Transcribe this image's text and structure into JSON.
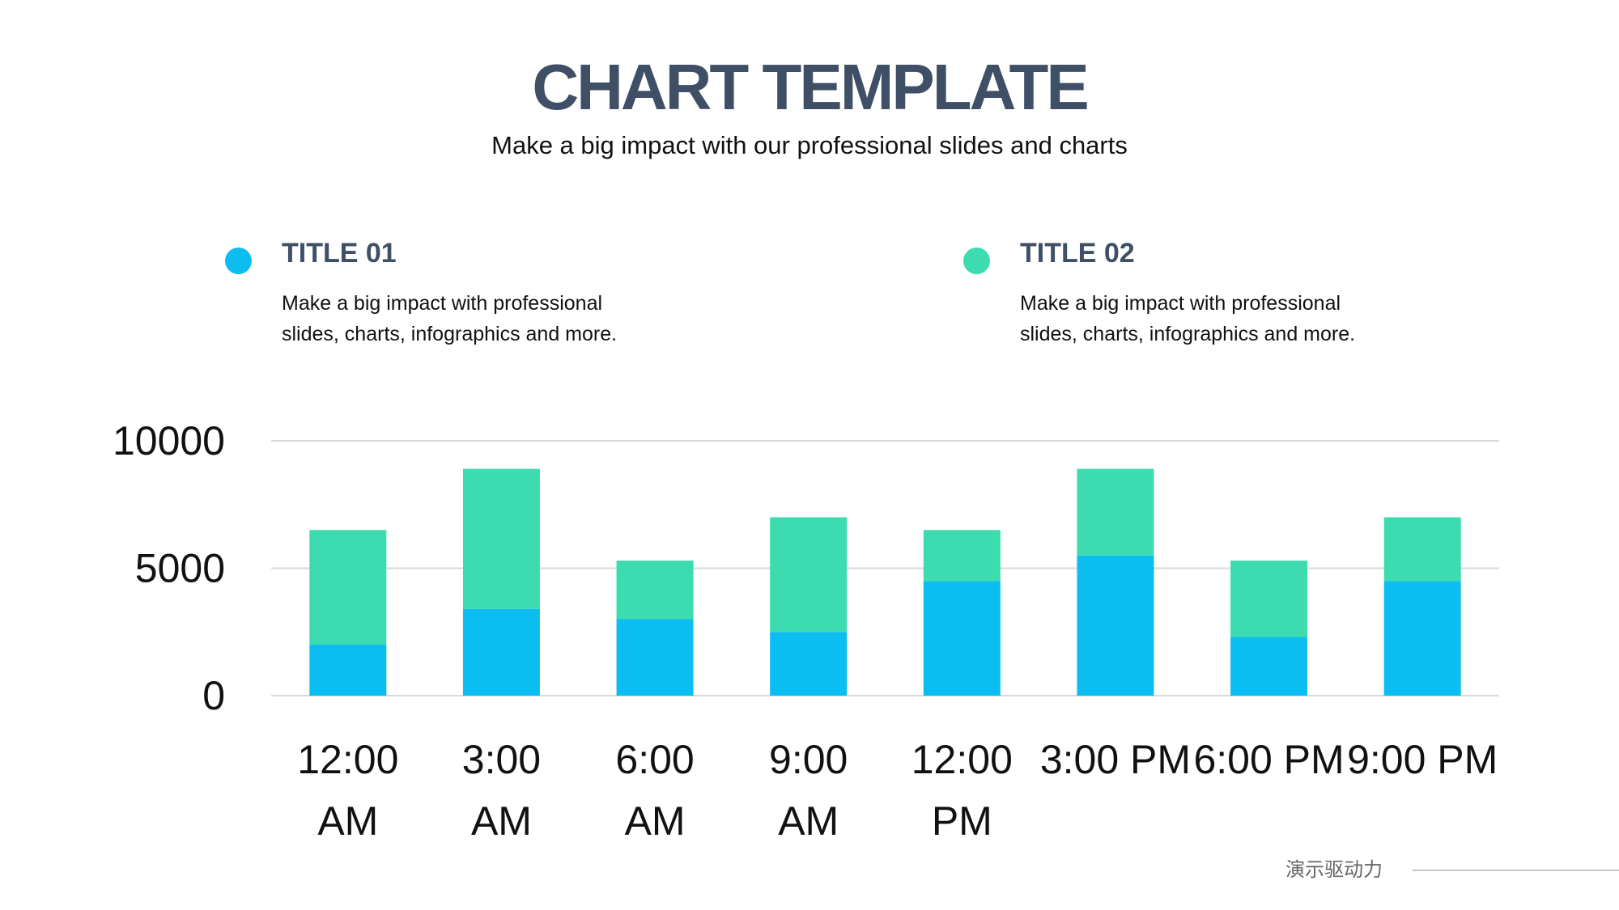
{
  "header": {
    "title": "CHART TEMPLATE",
    "subtitle": "Make a big impact with our professional slides and charts"
  },
  "legend": [
    {
      "title": "TITLE 01",
      "description": "Make a big impact with professional slides, charts, infographics and more.",
      "color": "#0bbdf0"
    },
    {
      "title": "TITLE 02",
      "description": "Make a big impact with professional slides, charts, infographics and more.",
      "color": "#3ddbb0"
    }
  ],
  "chart_data": {
    "type": "bar",
    "stacked": true,
    "categories": [
      [
        "12:00",
        "AM"
      ],
      [
        "3:00",
        "AM"
      ],
      [
        "6:00",
        "AM"
      ],
      [
        "9:00",
        "AM"
      ],
      [
        "12:00",
        "PM"
      ],
      [
        "3:00 PM"
      ],
      [
        "6:00 PM"
      ],
      [
        "9:00 PM"
      ]
    ],
    "series": [
      {
        "name": "TITLE 01",
        "color": "#0bbdf0",
        "values": [
          2000,
          3400,
          3000,
          2500,
          4500,
          5500,
          2300,
          4500
        ]
      },
      {
        "name": "TITLE 02",
        "color": "#3ddbb0",
        "values": [
          4500,
          5500,
          2300,
          4500,
          2000,
          3400,
          3000,
          2500
        ]
      }
    ],
    "ylim": [
      0,
      10000
    ],
    "yticks": [
      "0",
      "5000",
      "10000"
    ],
    "grid": true,
    "title": "",
    "xlabel": "",
    "ylabel": ""
  },
  "footer": {
    "text": "演示驱动力"
  }
}
